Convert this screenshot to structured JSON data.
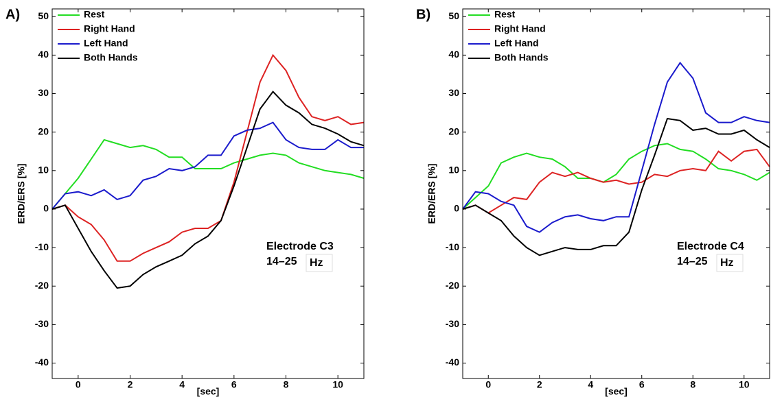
{
  "chart_data": [
    {
      "type": "line",
      "panel": "A)",
      "y_label": "ERD/ERS [%]",
      "x_label": "[sec]",
      "annotation": [
        "Electrode C3",
        "14–25",
        "Hz"
      ],
      "legend": "upper left",
      "xlim": [
        -1,
        11
      ],
      "ylim": [
        -44,
        52
      ],
      "xticks": [
        0,
        2,
        4,
        6,
        8,
        10
      ],
      "yticks": [
        -40,
        -30,
        -20,
        -10,
        0,
        10,
        20,
        30,
        40,
        50
      ],
      "x": [
        -1,
        -0.5,
        0,
        0.5,
        1,
        1.5,
        2,
        2.5,
        3,
        3.5,
        4,
        4.5,
        5,
        5.5,
        6,
        6.5,
        7,
        7.5,
        8,
        8.5,
        9,
        9.5,
        10,
        10.5,
        11
      ],
      "series": [
        {
          "name": "Rest",
          "color": "#22dd22",
          "values": [
            0,
            4,
            8,
            13,
            18,
            17,
            16,
            16.5,
            15.5,
            13.5,
            13.5,
            10.5,
            10.5,
            10.5,
            12,
            13,
            14,
            14.5,
            14,
            12,
            11,
            10,
            9.5,
            9,
            8
          ]
        },
        {
          "name": "Right Hand",
          "color": "#dd2222",
          "values": [
            0,
            1,
            -2,
            -4,
            -8,
            -13.5,
            -13.5,
            -11.5,
            -10,
            -8.5,
            -6,
            -5,
            -5,
            -3,
            7,
            20,
            33,
            40,
            36,
            29,
            24,
            23,
            24,
            22,
            22.5
          ]
        },
        {
          "name": "Left Hand",
          "color": "#1a1acc",
          "values": [
            0,
            4,
            4.5,
            3.5,
            5,
            2.5,
            3.5,
            7.5,
            8.5,
            10.5,
            10,
            11,
            14,
            14,
            19,
            20.5,
            21,
            22.5,
            18,
            16,
            15.5,
            15.5,
            18,
            16,
            16
          ]
        },
        {
          "name": "Both Hands",
          "color": "#000000",
          "values": [
            0,
            1,
            -5,
            -11,
            -16,
            -20.5,
            -20,
            -17,
            -15,
            -13.5,
            -12,
            -9,
            -7,
            -3,
            6,
            16,
            26,
            30.5,
            27,
            25,
            22,
            21,
            19.5,
            17.5,
            16.5
          ]
        }
      ]
    },
    {
      "type": "line",
      "panel": "B)",
      "y_label": "ERD/ERS [%]",
      "x_label": "[sec]",
      "annotation": [
        "Electrode C4",
        "14–25",
        "Hz"
      ],
      "legend": "upper left",
      "xlim": [
        -1,
        11
      ],
      "ylim": [
        -44,
        52
      ],
      "xticks": [
        0,
        2,
        4,
        6,
        8,
        10
      ],
      "yticks": [
        -40,
        -30,
        -20,
        -10,
        0,
        10,
        20,
        30,
        40,
        50
      ],
      "x": [
        -1,
        -0.5,
        0,
        0.5,
        1,
        1.5,
        2,
        2.5,
        3,
        3.5,
        4,
        4.5,
        5,
        5.5,
        6,
        6.5,
        7,
        7.5,
        8,
        8.5,
        9,
        9.5,
        10,
        10.5,
        11
      ],
      "series": [
        {
          "name": "Rest",
          "color": "#22dd22",
          "values": [
            0,
            3,
            6,
            12,
            13.5,
            14.5,
            13.5,
            13,
            11,
            8,
            8,
            7,
            9,
            13,
            15,
            16.5,
            17,
            15.5,
            15,
            13,
            10.5,
            10,
            9,
            7.5,
            9.5
          ]
        },
        {
          "name": "Right Hand",
          "color": "#dd2222",
          "values": [
            0,
            1,
            -1,
            1,
            3,
            2.5,
            7,
            9.5,
            8.5,
            9.5,
            8,
            7,
            7.5,
            6.5,
            7,
            9,
            8.5,
            10,
            10.5,
            10,
            15,
            12.5,
            15,
            15.5,
            11
          ]
        },
        {
          "name": "Left Hand",
          "color": "#1a1acc",
          "values": [
            0,
            4.5,
            4,
            2,
            1,
            -4.5,
            -6,
            -3.5,
            -2,
            -1.5,
            -2.5,
            -3,
            -2,
            -2,
            10,
            22,
            33,
            38,
            34,
            25,
            22.5,
            22.5,
            24,
            23,
            22.5
          ]
        },
        {
          "name": "Both Hands",
          "color": "#000000",
          "values": [
            0,
            1,
            -1,
            -3,
            -7,
            -10,
            -12,
            -11,
            -10,
            -10.5,
            -10.5,
            -9.5,
            -9.5,
            -6,
            5,
            14,
            23.5,
            23,
            20.5,
            21,
            19.5,
            19.5,
            20.5,
            18,
            16
          ]
        }
      ]
    }
  ]
}
